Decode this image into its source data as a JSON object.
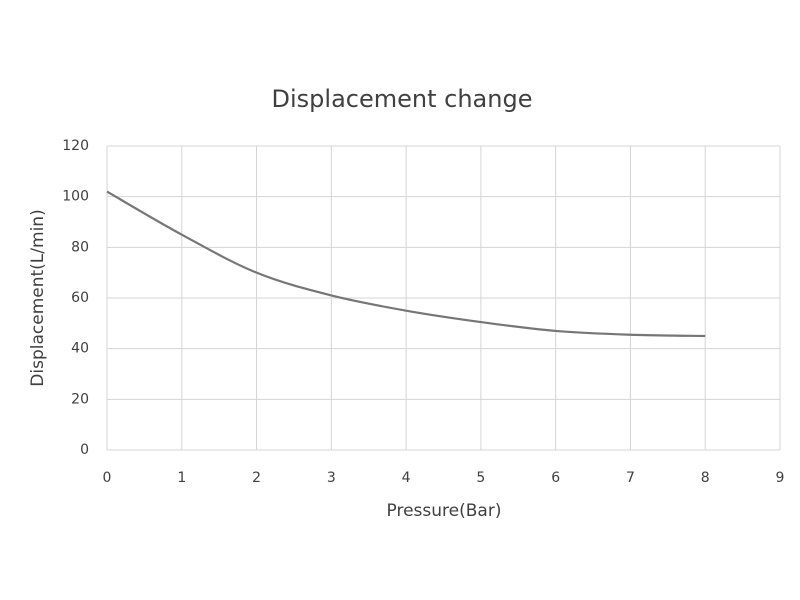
{
  "chart_data": {
    "type": "line",
    "title": "Displacement change",
    "x_label": "Pressure(Bar)",
    "y_label": "Displacement(L/min)",
    "x": [
      0,
      1,
      2,
      3,
      4,
      5,
      6,
      7,
      8
    ],
    "series": [
      {
        "name": "Displacement",
        "color": "#767676",
        "values": [
          102,
          85,
          70,
          61,
          55,
          50.5,
          47,
          45.5,
          45
        ]
      }
    ],
    "xlim": [
      0,
      9
    ],
    "xticks": [
      0,
      1,
      2,
      3,
      4,
      5,
      6,
      7,
      8,
      9
    ],
    "ylim": [
      0,
      120
    ],
    "yticks": [
      0,
      20,
      40,
      60,
      80,
      100,
      120
    ],
    "grid": true
  }
}
